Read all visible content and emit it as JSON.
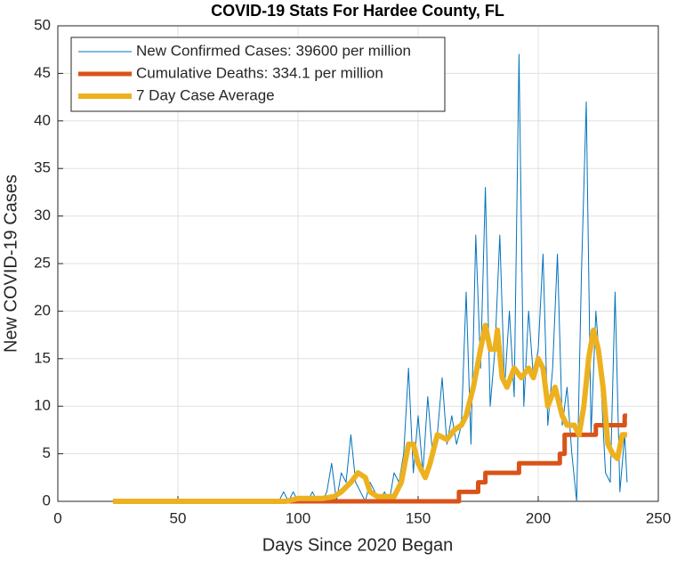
{
  "chart_data": {
    "type": "line",
    "title": "COVID-19 Stats For Hardee County, FL",
    "xlabel": "Days Since 2020 Began",
    "ylabel": "New COVID-19 Cases",
    "xlim": [
      0,
      250
    ],
    "ylim": [
      0,
      50
    ],
    "xticks": [
      0,
      50,
      100,
      150,
      200,
      250
    ],
    "yticks": [
      0,
      5,
      10,
      15,
      20,
      25,
      30,
      35,
      40,
      45,
      50
    ],
    "grid": true,
    "legend": "upper left",
    "series": [
      {
        "name": "New Confirmed Cases: 39600 per million",
        "color": "#0072bd",
        "x": [
          23,
          90,
          92,
          94,
          96,
          98,
          100,
          102,
          104,
          106,
          108,
          110,
          112,
          114,
          116,
          118,
          120,
          122,
          124,
          126,
          128,
          130,
          132,
          134,
          136,
          138,
          140,
          142,
          144,
          146,
          148,
          150,
          152,
          154,
          156,
          158,
          160,
          162,
          164,
          166,
          168,
          170,
          172,
          174,
          176,
          178,
          180,
          182,
          184,
          186,
          188,
          190,
          192,
          194,
          196,
          198,
          200,
          202,
          204,
          206,
          208,
          210,
          212,
          214,
          216,
          218,
          220,
          222,
          224,
          226,
          228,
          230,
          232,
          234,
          236,
          237
        ],
        "values": [
          0,
          0,
          0,
          1,
          0,
          1,
          0,
          0,
          0,
          1,
          0,
          0,
          1,
          4,
          0,
          3,
          2,
          7,
          2,
          1,
          0,
          2,
          1,
          0,
          1,
          0,
          3,
          2,
          5,
          14,
          3,
          9,
          3,
          11,
          5,
          7,
          13,
          6,
          9,
          6,
          8,
          22,
          6,
          28,
          14,
          33,
          10,
          16,
          28,
          12,
          20,
          11,
          47,
          10,
          20,
          13,
          16,
          26,
          8,
          14,
          26,
          8,
          12,
          5,
          0,
          24,
          42,
          7,
          20,
          13,
          3,
          2,
          22,
          1,
          7,
          2
        ]
      },
      {
        "name": "Cumulative Deaths: 334.1 per million",
        "color": "#d95319",
        "x": [
          23,
          167,
          167,
          175,
          175,
          178,
          178,
          192,
          192,
          209,
          209,
          211,
          211,
          224,
          224,
          236,
          236,
          237
        ],
        "values": [
          0,
          0,
          1,
          1,
          2,
          2,
          3,
          3,
          4,
          4,
          5,
          5,
          7,
          7,
          8,
          8,
          9,
          9
        ]
      },
      {
        "name": "7 Day Case Average",
        "color": "#edb120",
        "x": [
          23,
          95,
          100,
          110,
          115,
          118,
          122,
          125,
          128,
          130,
          133,
          140,
          143,
          146,
          148,
          150,
          153,
          155,
          158,
          162,
          165,
          168,
          170,
          173,
          176,
          178,
          180,
          182,
          183,
          185,
          187,
          190,
          193,
          196,
          198,
          200,
          202,
          204,
          207,
          210,
          212,
          215,
          217,
          219,
          221,
          223,
          225,
          227,
          229,
          231,
          233,
          235,
          237
        ],
        "values": [
          0,
          0,
          0.3,
          0.3,
          0.5,
          1,
          2,
          3,
          2.5,
          1,
          0.5,
          0.5,
          2,
          6,
          6,
          4,
          2.5,
          4,
          7,
          6.5,
          7.5,
          8,
          9,
          12,
          16,
          18.5,
          16,
          16,
          18,
          13,
          12,
          14,
          13,
          14,
          13,
          15,
          14,
          10,
          12,
          9,
          8,
          8,
          7,
          10,
          15,
          18,
          16,
          12,
          6,
          5,
          4.5,
          7,
          7
        ]
      }
    ]
  }
}
